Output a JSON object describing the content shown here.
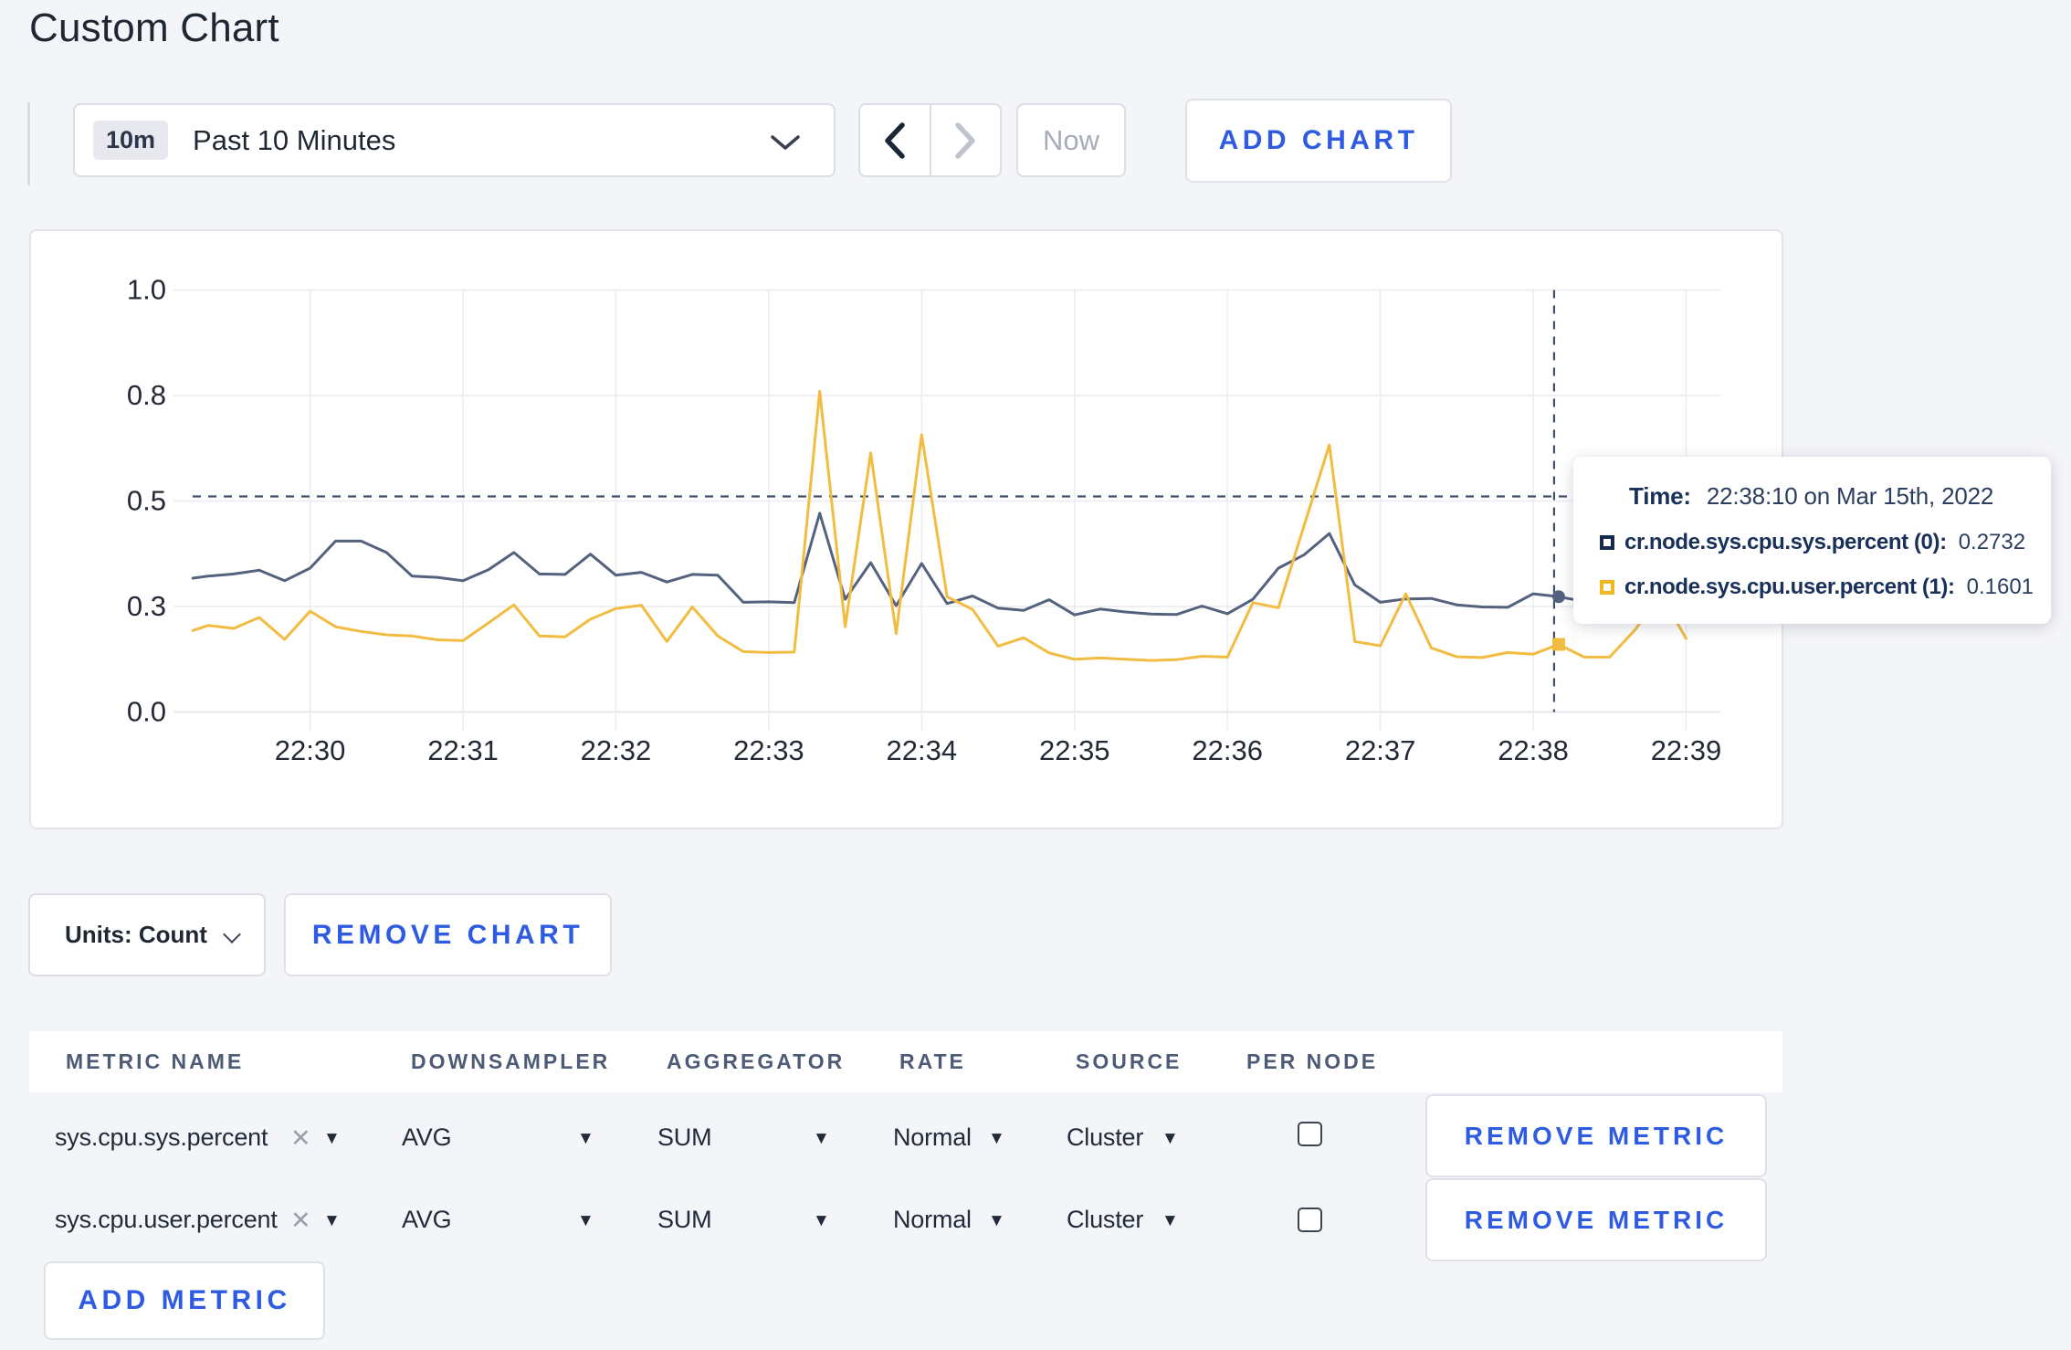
{
  "page": {
    "title": "Custom Chart",
    "background": "#f4f5f9",
    "accent_blue": "#2e5be0"
  },
  "icons": {
    "caret_down": "▼",
    "clear_x": "✕"
  },
  "toolbar": {
    "range_badge": "10m",
    "range_label": "Past 10 Minutes",
    "prev_label": "previous time window",
    "next_label": "next time window",
    "now_label": "Now",
    "add_chart_label": "ADD CHART"
  },
  "chart_data": {
    "type": "line",
    "title": "",
    "xlabel": "",
    "ylabel": "",
    "ylim": [
      0,
      1
    ],
    "grid": true,
    "legend_position": "tooltip",
    "y_ticks": [
      {
        "value": 0.0,
        "label": "0.0"
      },
      {
        "value": 0.25,
        "label": "0.3"
      },
      {
        "value": 0.5,
        "label": "0.5"
      },
      {
        "value": 0.75,
        "label": "0.8"
      },
      {
        "value": 1.0,
        "label": "1.0"
      }
    ],
    "x_ticks": [
      {
        "offset_s": 0,
        "label": "22:30"
      },
      {
        "offset_s": 60,
        "label": "22:31"
      },
      {
        "offset_s": 120,
        "label": "22:32"
      },
      {
        "offset_s": 180,
        "label": "22:33"
      },
      {
        "offset_s": 240,
        "label": "22:34"
      },
      {
        "offset_s": 300,
        "label": "22:35"
      },
      {
        "offset_s": 360,
        "label": "22:36"
      },
      {
        "offset_s": 420,
        "label": "22:37"
      },
      {
        "offset_s": 480,
        "label": "22:38"
      },
      {
        "offset_s": 540,
        "label": "22:39"
      }
    ],
    "x_offsets_s": [
      -46,
      -40,
      -30,
      -20,
      -10,
      0,
      10,
      20,
      30,
      40,
      50,
      60,
      70,
      80,
      90,
      100,
      110,
      120,
      130,
      140,
      150,
      160,
      170,
      180,
      190,
      200,
      210,
      220,
      230,
      240,
      250,
      260,
      270,
      280,
      290,
      300,
      310,
      320,
      330,
      340,
      350,
      360,
      370,
      380,
      390,
      400,
      410,
      420,
      430,
      440,
      450,
      460,
      470,
      480,
      490,
      500,
      510,
      520,
      530,
      540
    ],
    "series": [
      {
        "name": "cr.node.sys.cpu.sys.percent",
        "color": "#54627e",
        "marker": "circle",
        "values": [
          0.317,
          0.322,
          0.327,
          0.336,
          0.311,
          0.341,
          0.405,
          0.405,
          0.378,
          0.322,
          0.319,
          0.311,
          0.337,
          0.378,
          0.327,
          0.326,
          0.374,
          0.324,
          0.331,
          0.308,
          0.326,
          0.324,
          0.26,
          0.261,
          0.259,
          0.471,
          0.267,
          0.354,
          0.252,
          0.352,
          0.257,
          0.275,
          0.246,
          0.241,
          0.266,
          0.23,
          0.244,
          0.237,
          0.232,
          0.231,
          0.251,
          0.233,
          0.267,
          0.341,
          0.372,
          0.423,
          0.301,
          0.26,
          0.268,
          0.269,
          0.254,
          0.249,
          0.248,
          0.28,
          0.2732,
          0.262,
          0.257,
          0.263,
          0.272,
          0.26
        ]
      },
      {
        "name": "cr.node.sys.cpu.user.percent",
        "color": "#f2bc40",
        "marker": "square",
        "values": [
          0.193,
          0.205,
          0.198,
          0.224,
          0.172,
          0.239,
          0.202,
          0.191,
          0.183,
          0.18,
          0.171,
          0.169,
          0.211,
          0.254,
          0.18,
          0.178,
          0.22,
          0.245,
          0.253,
          0.167,
          0.249,
          0.18,
          0.143,
          0.141,
          0.142,
          0.76,
          0.202,
          0.614,
          0.186,
          0.657,
          0.273,
          0.243,
          0.156,
          0.176,
          0.14,
          0.125,
          0.128,
          0.125,
          0.122,
          0.124,
          0.132,
          0.13,
          0.259,
          0.247,
          0.44,
          0.633,
          0.167,
          0.157,
          0.28,
          0.152,
          0.131,
          0.129,
          0.141,
          0.137,
          0.1601,
          0.13,
          0.13,
          0.195,
          0.28,
          0.174
        ]
      }
    ],
    "crosshair": {
      "x_offset_s": 488.2,
      "y_value": 0.5108,
      "marker_offset_s": 490,
      "marker_values": [
        0.2732,
        0.1601
      ]
    }
  },
  "tooltip": {
    "time_label": "Time:",
    "time_value": "22:38:10 on Mar 15th, 2022",
    "series": [
      {
        "label": "cr.node.sys.cpu.sys.percent (0):",
        "value": "0.2732",
        "color": "#16294f"
      },
      {
        "label": "cr.node.sys.cpu.user.percent (1):",
        "value": "0.1601",
        "color": "#f2b824"
      }
    ]
  },
  "controls": {
    "units_label": "Units: Count",
    "remove_chart_label": "REMOVE CHART",
    "add_metric_label": "ADD METRIC"
  },
  "table": {
    "headers": [
      "METRIC NAME",
      "DOWNSAMPLER",
      "AGGREGATOR",
      "RATE",
      "SOURCE",
      "PER NODE"
    ],
    "remove_metric_label": "REMOVE METRIC",
    "rows": [
      {
        "metric": "sys.cpu.sys.percent",
        "downsampler": "AVG",
        "aggregator": "SUM",
        "rate": "Normal",
        "source": "Cluster",
        "per_node": false
      },
      {
        "metric": "sys.cpu.user.percent",
        "downsampler": "AVG",
        "aggregator": "SUM",
        "rate": "Normal",
        "source": "Cluster",
        "per_node": false
      }
    ]
  }
}
